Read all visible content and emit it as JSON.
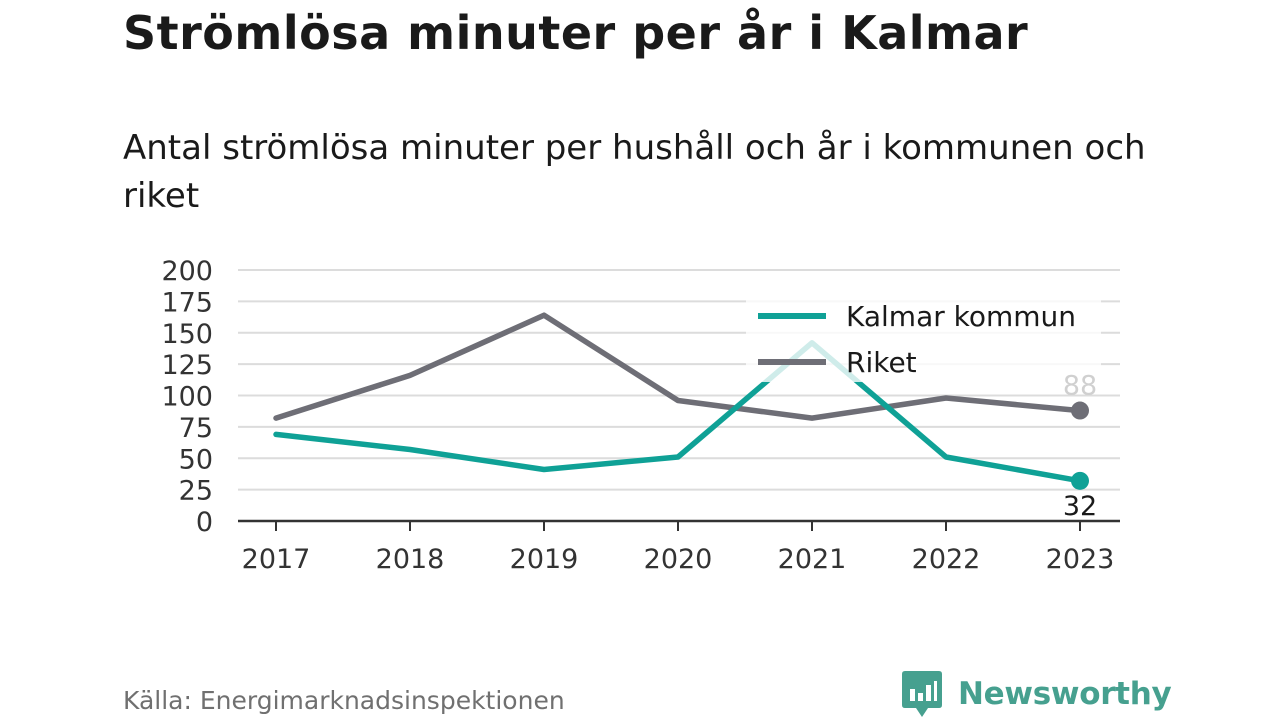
{
  "title": "Strömlösa minuter per år i Kalmar",
  "subtitle": "Antal strömlösa minuter per hushåll och år i kommunen och riket",
  "source": "Källa: Energimarknadsinspektionen",
  "brand": {
    "name": "Newsworthy",
    "logo_icon": "newsworthy-logo-icon",
    "color": "#46a08f"
  },
  "chart_data": {
    "type": "line",
    "categories": [
      "2017",
      "2018",
      "2019",
      "2020",
      "2021",
      "2022",
      "2023"
    ],
    "series": [
      {
        "name": "Kalmar kommun",
        "color": "#0fa196",
        "values": [
          69,
          57,
          41,
          51,
          142,
          51,
          32
        ],
        "end_label": "32"
      },
      {
        "name": "Riket",
        "color": "#6e6e76",
        "values": [
          82,
          116,
          164,
          96,
          82,
          98,
          88
        ],
        "end_label": "88"
      }
    ],
    "ylim": [
      0,
      200
    ],
    "yticks": [
      "0",
      "25",
      "50",
      "75",
      "100",
      "125",
      "150",
      "175",
      "200"
    ],
    "xlabel": "",
    "ylabel": "",
    "grid": true,
    "legend_position": "top-right"
  }
}
